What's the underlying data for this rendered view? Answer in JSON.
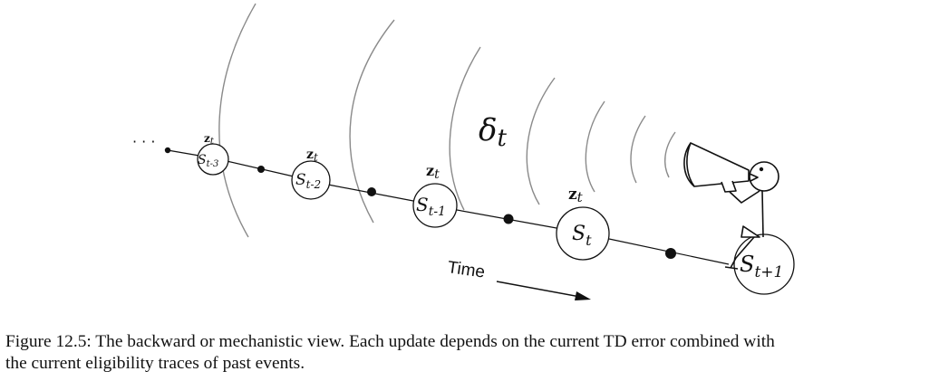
{
  "diagram": {
    "leading_dots": "· · ·",
    "delta": {
      "symbol": "δ",
      "subscript": "t"
    },
    "time_label": "Time",
    "states": [
      {
        "base": "S",
        "subscript": "t-3",
        "trace_label": "z",
        "trace_sub": "t"
      },
      {
        "base": "S",
        "subscript": "t-2",
        "trace_label": "z",
        "trace_sub": "t"
      },
      {
        "base": "S",
        "subscript": "t-1",
        "trace_label": "z",
        "trace_sub": "t"
      },
      {
        "base": "S",
        "subscript": "t",
        "trace_label": "z",
        "trace_sub": "t"
      },
      {
        "base": "S",
        "subscript": "t+1",
        "trace_label": "",
        "trace_sub": ""
      }
    ]
  },
  "caption": {
    "line1": "Figure 12.5: The backward or mechanistic view. Each update depends on the current TD error combined with",
    "line2": "the current eligibility traces of past events."
  }
}
